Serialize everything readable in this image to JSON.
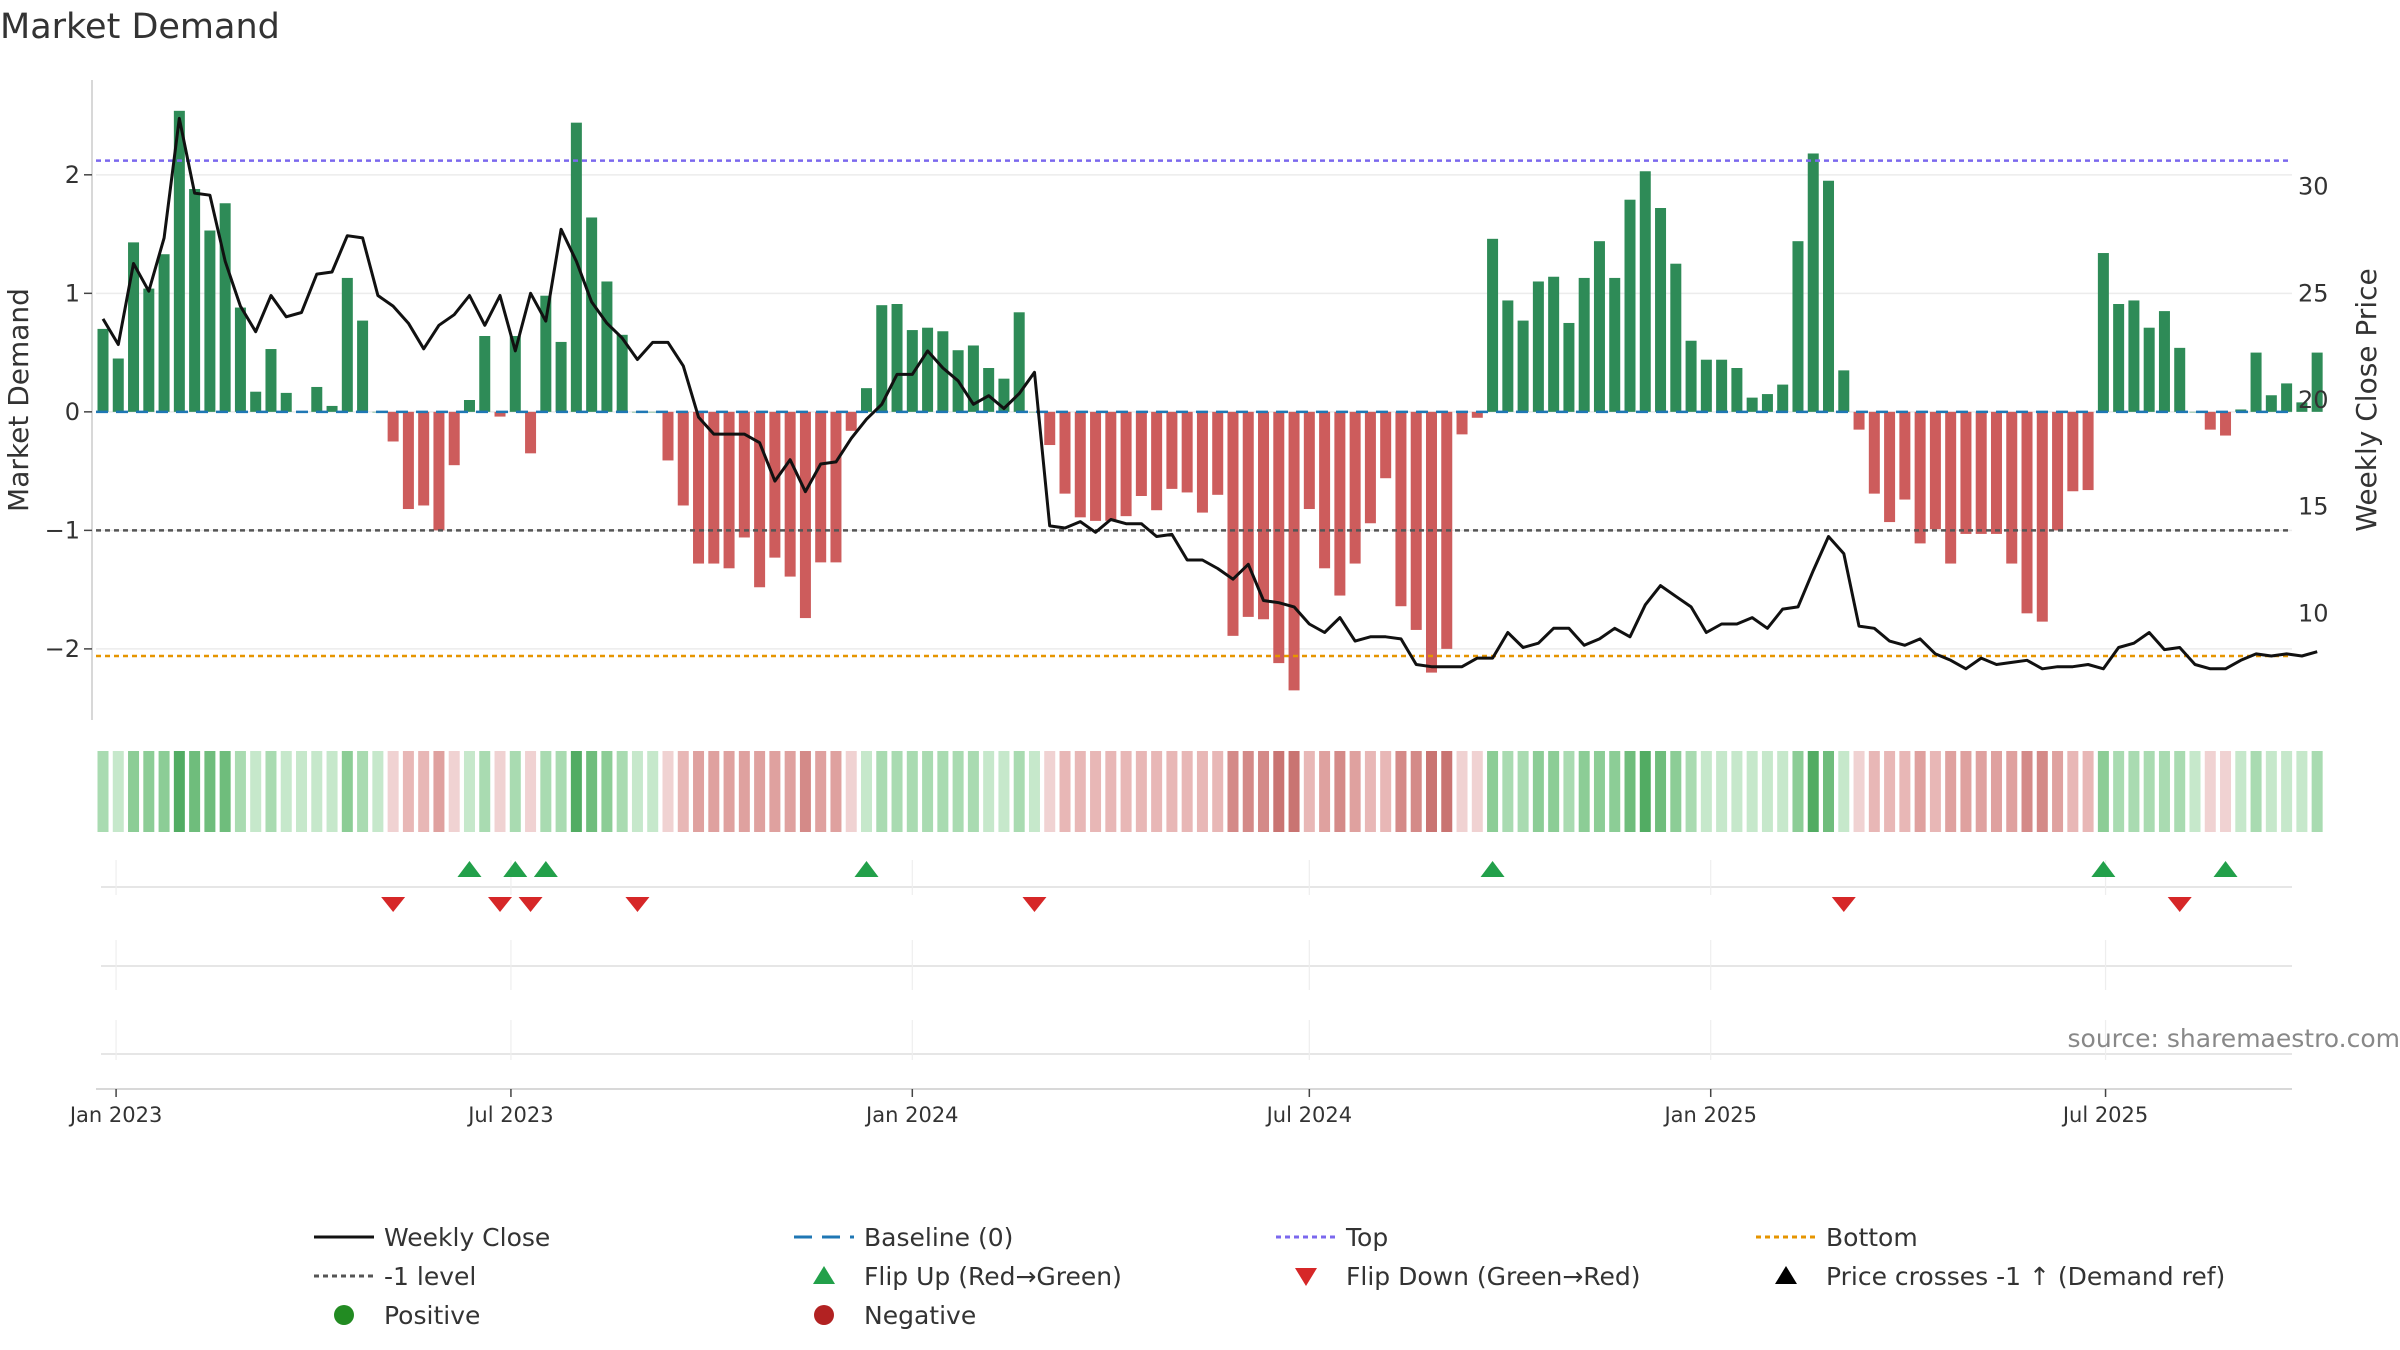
{
  "chart_data": {
    "type": "bar",
    "title": "Market Demand",
    "ylabel_left": "Market Demand",
    "ylabel_right": "Weekly Close Price",
    "source_note": "source: sharemaestro.com",
    "x_start": "2022-12-26",
    "x_step_days": 7,
    "ylim_left": [
      -2.6,
      2.8
    ],
    "ylim_right": [
      5,
      35
    ],
    "yticks_left": [
      {
        "v": 2,
        "label": "2"
      },
      {
        "v": 1,
        "label": "1"
      },
      {
        "v": 0,
        "label": "0"
      },
      {
        "v": -1,
        "label": "−1"
      },
      {
        "v": -2,
        "label": "−2"
      }
    ],
    "yticks_right": [
      {
        "v": 30,
        "label": "30"
      },
      {
        "v": 25,
        "label": "25"
      },
      {
        "v": 20,
        "label": "20"
      },
      {
        "v": 15,
        "label": "15"
      },
      {
        "v": 10,
        "label": "10"
      }
    ],
    "xticks": [
      {
        "date": "2023-01-01",
        "label": "Jan 2023"
      },
      {
        "date": "2023-07-01",
        "label": "Jul 2023"
      },
      {
        "date": "2024-01-01",
        "label": "Jan 2024"
      },
      {
        "date": "2024-07-01",
        "label": "Jul 2024"
      },
      {
        "date": "2025-01-01",
        "label": "Jan 2025"
      },
      {
        "date": "2025-07-01",
        "label": "Jul 2025"
      }
    ],
    "reference_lines": {
      "top": 2.12,
      "bottom": -2.06,
      "minus_one": -1,
      "baseline": 0
    },
    "colors": {
      "positive": "#2e8b57",
      "negative": "#cd5c5c",
      "price": "#111111",
      "baseline": "#1f77b4",
      "top": "#7b68ee",
      "bottom": "#e69500",
      "minus_one": "#555555",
      "flip_up": "#22a04a",
      "flip_down": "#d62728",
      "positive_dot": "#228b22",
      "negative_dot": "#b22222"
    },
    "series": [
      {
        "name": "Market Demand",
        "values": [
          0.7,
          0.45,
          1.43,
          1.04,
          1.33,
          2.54,
          1.88,
          1.53,
          1.76,
          0.88,
          0.17,
          0.53,
          0.16,
          0.0,
          0.21,
          0.05,
          1.13,
          0.77,
          0.0,
          -0.25,
          -0.82,
          -0.79,
          -1.0,
          -0.45,
          0.1,
          0.64,
          -0.04,
          0.64,
          -0.35,
          0.98,
          0.59,
          2.44,
          1.64,
          1.1,
          0.65,
          0.0,
          0.0,
          -0.41,
          -0.79,
          -1.28,
          -1.28,
          -1.32,
          -1.06,
          -1.48,
          -1.23,
          -1.39,
          -1.74,
          -1.27,
          -1.27,
          -0.16,
          0.2,
          0.9,
          0.91,
          0.69,
          0.71,
          0.68,
          0.52,
          0.56,
          0.37,
          0.28,
          0.84,
          0.0,
          -0.28,
          -0.69,
          -0.89,
          -0.92,
          -0.92,
          -0.88,
          -0.71,
          -0.83,
          -0.65,
          -0.68,
          -0.85,
          -0.7,
          -1.89,
          -1.73,
          -1.75,
          -2.12,
          -2.35,
          -0.82,
          -1.32,
          -1.55,
          -1.28,
          -0.94,
          -0.56,
          -1.64,
          -1.84,
          -2.2,
          -2.0,
          -0.19,
          -0.05,
          1.46,
          0.94,
          0.77,
          1.1,
          1.14,
          0.75,
          1.13,
          1.44,
          1.13,
          1.79,
          2.03,
          1.72,
          1.25,
          0.6,
          0.44,
          0.44,
          0.37,
          0.12,
          0.15,
          0.23,
          1.44,
          2.18,
          1.95,
          0.35,
          -0.15,
          -0.69,
          -0.93,
          -0.74,
          -1.11,
          -0.99,
          -1.28,
          -1.03,
          -1.03,
          -1.03,
          -1.28,
          -1.7,
          -1.77,
          -1.0,
          -0.67,
          -0.66,
          1.34,
          0.91,
          0.94,
          0.71,
          0.85,
          0.54,
          0.0,
          -0.15,
          -0.2,
          0.02,
          0.5,
          0.14,
          0.24,
          0.08,
          0.5
        ]
      },
      {
        "name": "Weekly Close",
        "values": [
          23.8,
          22.6,
          26.4,
          25.1,
          27.6,
          33.2,
          29.7,
          29.6,
          26.5,
          24.4,
          23.2,
          24.9,
          23.9,
          24.1,
          25.9,
          26.0,
          27.7,
          27.6,
          24.9,
          24.4,
          23.6,
          22.4,
          23.5,
          24.0,
          24.9,
          23.5,
          24.9,
          22.3,
          25.0,
          23.7,
          28.0,
          26.5,
          24.6,
          23.6,
          22.9,
          21.9,
          22.7,
          22.7,
          21.6,
          19.2,
          18.4,
          18.4,
          18.4,
          18.0,
          16.2,
          17.2,
          15.7,
          17.0,
          17.1,
          18.2,
          19.1,
          19.8,
          21.2,
          21.2,
          22.3,
          21.5,
          20.9,
          19.8,
          20.2,
          19.6,
          20.3,
          21.3,
          14.1,
          14.0,
          14.3,
          13.8,
          14.4,
          14.2,
          14.2,
          13.6,
          13.7,
          12.5,
          12.5,
          12.1,
          11.6,
          12.3,
          10.6,
          10.5,
          10.3,
          9.5,
          9.1,
          9.8,
          8.7,
          8.9,
          8.9,
          8.8,
          7.6,
          7.5,
          7.5,
          7.5,
          7.9,
          7.9,
          9.1,
          8.4,
          8.6,
          9.3,
          9.3,
          8.5,
          8.8,
          9.3,
          8.9,
          10.4,
          11.3,
          10.8,
          10.3,
          9.1,
          9.5,
          9.5,
          9.8,
          9.3,
          10.2,
          10.3,
          12.0,
          13.6,
          12.8,
          9.4,
          9.3,
          8.7,
          8.5,
          8.8,
          8.1,
          7.8,
          7.4,
          7.9,
          7.6,
          7.7,
          7.8,
          7.4,
          7.5,
          7.5,
          7.6,
          7.4,
          8.4,
          8.6,
          9.1,
          8.3,
          8.4,
          7.6,
          7.4,
          7.4,
          7.8,
          8.1,
          8.0,
          8.1,
          8.0,
          8.2
        ]
      }
    ],
    "flip_up_weeks": [
      24,
      27,
      29,
      50,
      91,
      131,
      139
    ],
    "flip_down_weeks": [
      19,
      26,
      28,
      35,
      61,
      114,
      136
    ],
    "legend": [
      {
        "key": "weekly_close",
        "label": "Weekly Close"
      },
      {
        "key": "baseline",
        "label": "Baseline (0)"
      },
      {
        "key": "top",
        "label": "Top"
      },
      {
        "key": "bottom",
        "label": "Bottom"
      },
      {
        "key": "minus_one",
        "label": "-1 level"
      },
      {
        "key": "flip_up",
        "label": "Flip Up (Red→Green)"
      },
      {
        "key": "flip_down",
        "label": "Flip Down (Green→Red)"
      },
      {
        "key": "price_cross",
        "label": "Price crosses -1 ↑ (Demand ref)"
      },
      {
        "key": "positive",
        "label": "Positive"
      },
      {
        "key": "negative",
        "label": "Negative"
      }
    ]
  }
}
